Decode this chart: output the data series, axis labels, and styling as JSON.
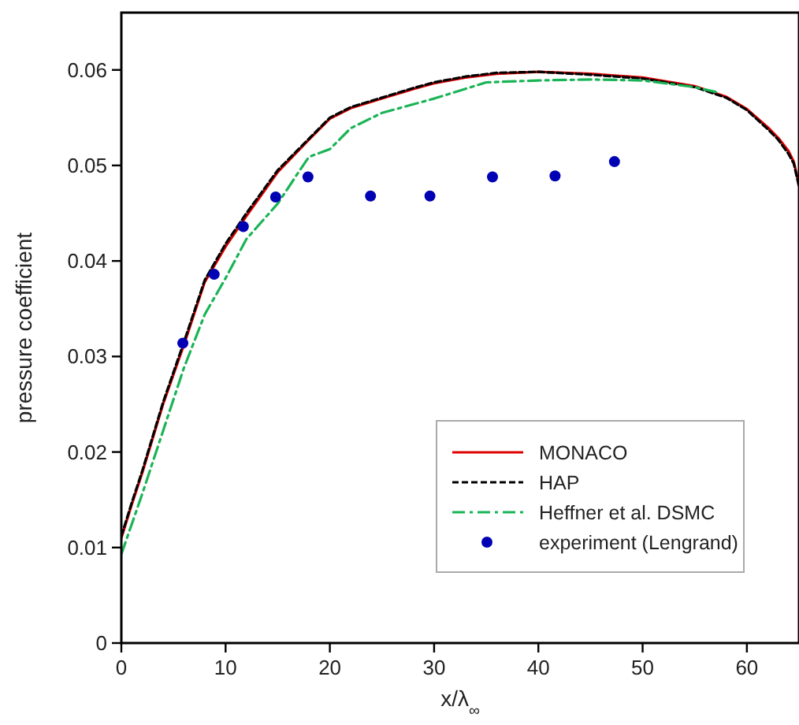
{
  "chart_data": {
    "type": "line",
    "xlabel": "x/λ$_{∞}$",
    "ylabel": "pressure coefficient",
    "xlim": [
      0,
      65
    ],
    "ylim": [
      0,
      0.066
    ],
    "xticks": [
      0,
      10,
      20,
      30,
      40,
      50,
      60
    ],
    "yticks": [
      0,
      0.01,
      0.02,
      0.03,
      0.04,
      0.05,
      0.06
    ],
    "legend": "bottom right",
    "grid": false,
    "series": [
      {
        "name": "MONACO",
        "color": "#e00000",
        "line_style": "solid",
        "x": [
          0,
          1,
          2,
          4,
          6,
          8,
          10,
          12,
          15,
          18,
          20,
          22,
          25,
          28,
          30,
          33,
          36,
          40,
          45,
          50,
          55,
          58,
          60,
          62,
          63,
          64,
          64.5,
          65
        ],
        "values": [
          0.011,
          0.0145,
          0.0178,
          0.025,
          0.0312,
          0.0378,
          0.0415,
          0.0447,
          0.0493,
          0.0527,
          0.0549,
          0.056,
          0.057,
          0.058,
          0.0586,
          0.0592,
          0.0596,
          0.0598,
          0.0596,
          0.0592,
          0.0583,
          0.0572,
          0.0559,
          0.054,
          0.0529,
          0.0515,
          0.0504,
          0.048
        ]
      },
      {
        "name": "HAP",
        "color": "#000000",
        "line_style": "dashed",
        "x": [
          0,
          1,
          2,
          4,
          6,
          8,
          10,
          12,
          15,
          18,
          20,
          22,
          25,
          28,
          30,
          33,
          36,
          40,
          45,
          50,
          55,
          58,
          60,
          62,
          63,
          64,
          64.5,
          65
        ],
        "values": [
          0.0112,
          0.0147,
          0.018,
          0.0252,
          0.0315,
          0.038,
          0.0418,
          0.045,
          0.0495,
          0.0528,
          0.055,
          0.0561,
          0.0571,
          0.0581,
          0.0587,
          0.0593,
          0.0597,
          0.0598,
          0.0595,
          0.0591,
          0.0582,
          0.0571,
          0.0558,
          0.0538,
          0.0527,
          0.0512,
          0.0502,
          0.0478
        ]
      },
      {
        "name": "Heffner et al. DSMC",
        "color": "#19b456",
        "line_style": "dashdot",
        "x": [
          0,
          2,
          4,
          6,
          8,
          10,
          12,
          15,
          17,
          18,
          20,
          22,
          25,
          30,
          35,
          40,
          45,
          50,
          55,
          57
        ],
        "values": [
          0.0093,
          0.0156,
          0.0222,
          0.0288,
          0.0344,
          0.0382,
          0.0423,
          0.046,
          0.0493,
          0.0509,
          0.0517,
          0.0539,
          0.0555,
          0.057,
          0.0587,
          0.0589,
          0.059,
          0.0589,
          0.0582,
          0.0577
        ]
      },
      {
        "name": "experiment (Lengrand)",
        "type": "scatter",
        "marker": "circle",
        "color": "#0000b4",
        "x": [
          5.9,
          8.9,
          11.7,
          14.8,
          17.9,
          23.9,
          29.6,
          35.6,
          41.6,
          47.3
        ],
        "values": [
          0.0314,
          0.0386,
          0.0436,
          0.0467,
          0.0488,
          0.0468,
          0.0468,
          0.0488,
          0.0489,
          0.0504
        ]
      }
    ]
  }
}
